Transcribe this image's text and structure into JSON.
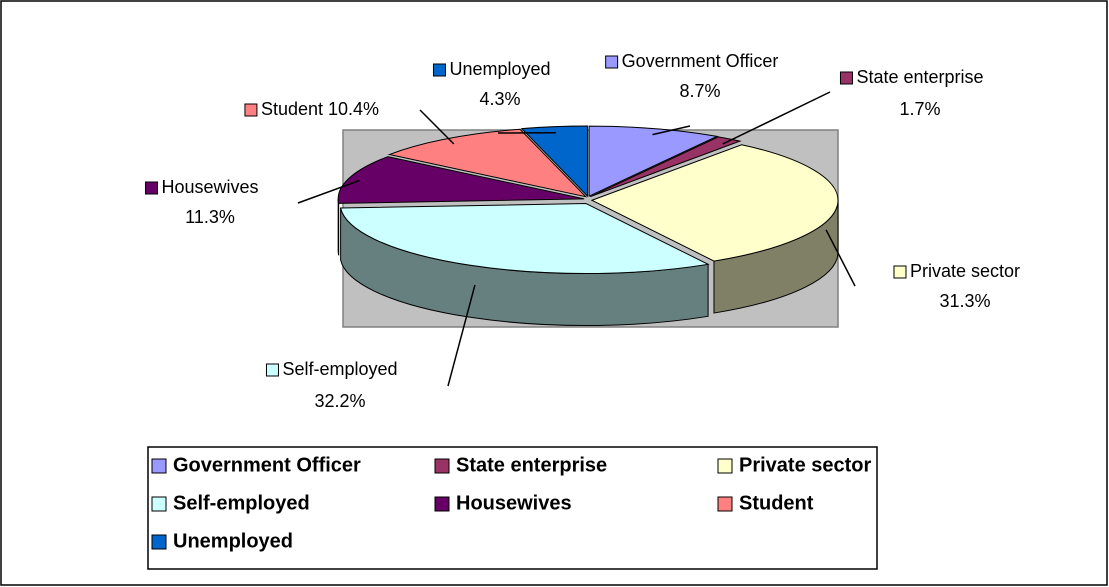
{
  "chart_data": {
    "type": "pie3d",
    "categories": [
      "Government Officer",
      "State enterprise",
      "Private sector",
      "Self-employed",
      "Housewives",
      "Student",
      "Unemployed"
    ],
    "values": [
      8.7,
      1.7,
      31.3,
      32.2,
      11.3,
      10.4,
      4.3
    ],
    "value_labels": [
      "8.7%",
      "1.7%",
      "31.3%",
      "32.2%",
      "11.3%",
      "10.4%",
      "4.3%"
    ],
    "colors": [
      "#9999ff",
      "#993366",
      "#ffffcc",
      "#ccffff",
      "#660066",
      "#ff8080",
      "#0066cc"
    ],
    "legend": "bottom"
  }
}
